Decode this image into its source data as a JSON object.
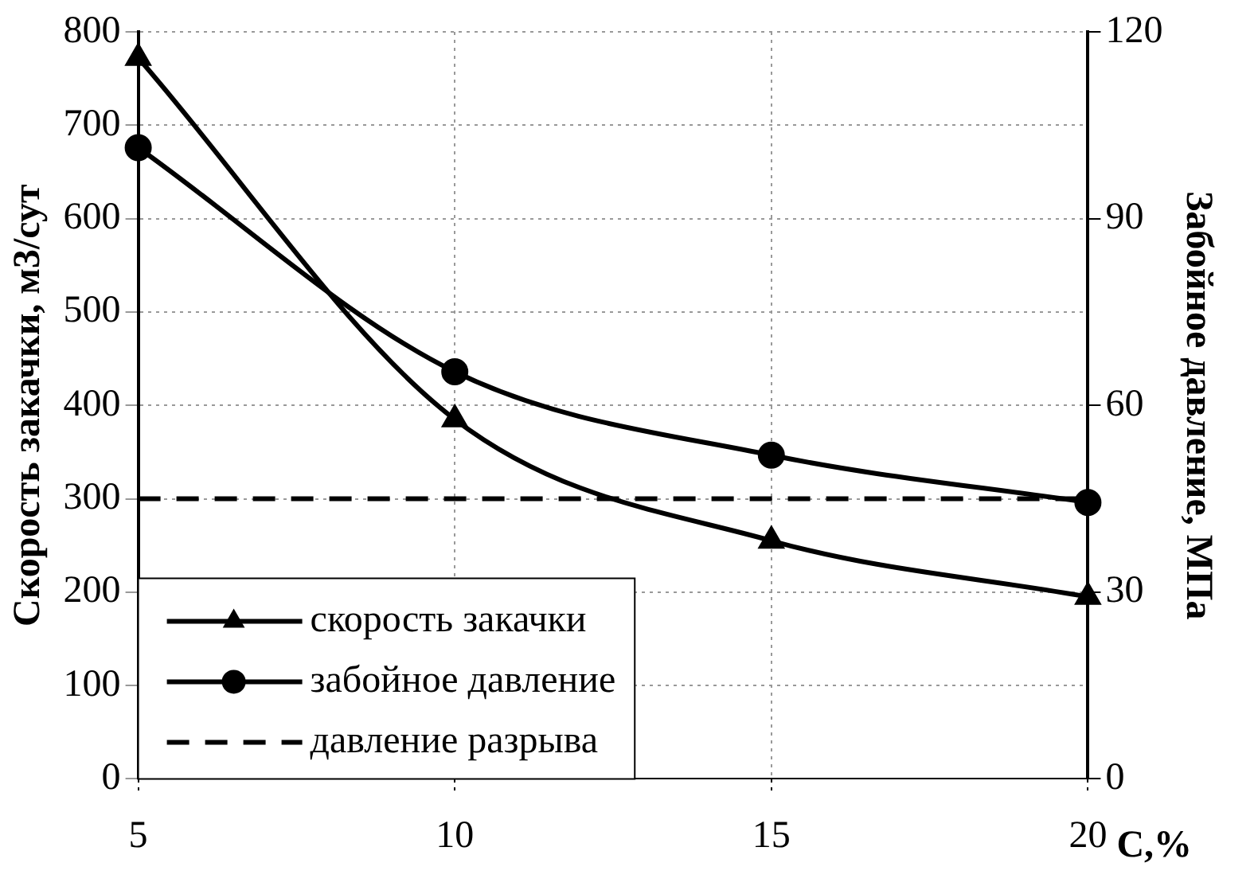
{
  "chart_data": {
    "type": "line",
    "xlabel": "С,%",
    "ylabel": "Скорость закачки, м3/сут",
    "y2label": "Забойное давление, МПа",
    "xlim": [
      5,
      20
    ],
    "xticks": [
      5,
      10,
      15,
      20
    ],
    "ylim": [
      0,
      800
    ],
    "yticks": [
      0,
      100,
      200,
      300,
      400,
      500,
      600,
      700,
      800
    ],
    "y2lim": [
      0,
      120
    ],
    "y2ticks": [
      0,
      30,
      60,
      90,
      120
    ],
    "series": [
      {
        "name": "скорость закачки",
        "color": "#000000",
        "marker": "triangle",
        "x": [
          5,
          10,
          15,
          20
        ],
        "values": [
          772,
          385,
          255,
          195
        ]
      },
      {
        "name": "забойное давление",
        "color": "#000000",
        "marker": "circle",
        "axis": "y2",
        "x": [
          5,
          10,
          15,
          20
        ],
        "values": [
          101.4,
          65.4,
          52,
          44.4
        ]
      }
    ],
    "ref_lines": [
      {
        "axis": "y",
        "value": 300,
        "label": "давление разрыва",
        "color": "#000000",
        "line_style": "dashed"
      }
    ],
    "grid": true,
    "legend": "bottom left",
    "line_style": "solid"
  }
}
